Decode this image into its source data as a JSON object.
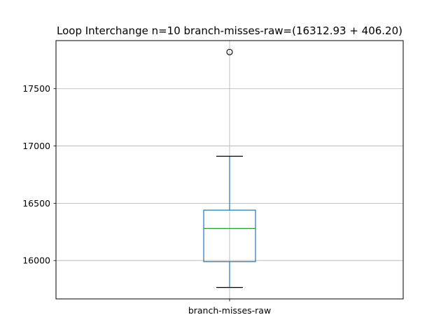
{
  "chart_data": {
    "type": "box",
    "title": "Loop Interchange n=10  branch-misses-raw=(16312.93 + 406.20)",
    "xlabel": "",
    "ylabel": "",
    "categories": [
      "branch-misses-raw"
    ],
    "ylim": [
      15665,
      17920
    ],
    "yticks": [
      16000,
      16500,
      17000,
      17500
    ],
    "ytick_labels": [
      "16000",
      "16500",
      "17000",
      "17500"
    ],
    "grid": true,
    "series": [
      {
        "whisker_low": 15765,
        "q1": 15990,
        "median": 16280,
        "q3": 16440,
        "whisker_high": 16910,
        "outliers": [
          17820
        ]
      }
    ],
    "colors": {
      "box": "#1f77b4",
      "median": "#2ca02c",
      "grid": "#b0b0b0",
      "axes": "#000000"
    }
  }
}
